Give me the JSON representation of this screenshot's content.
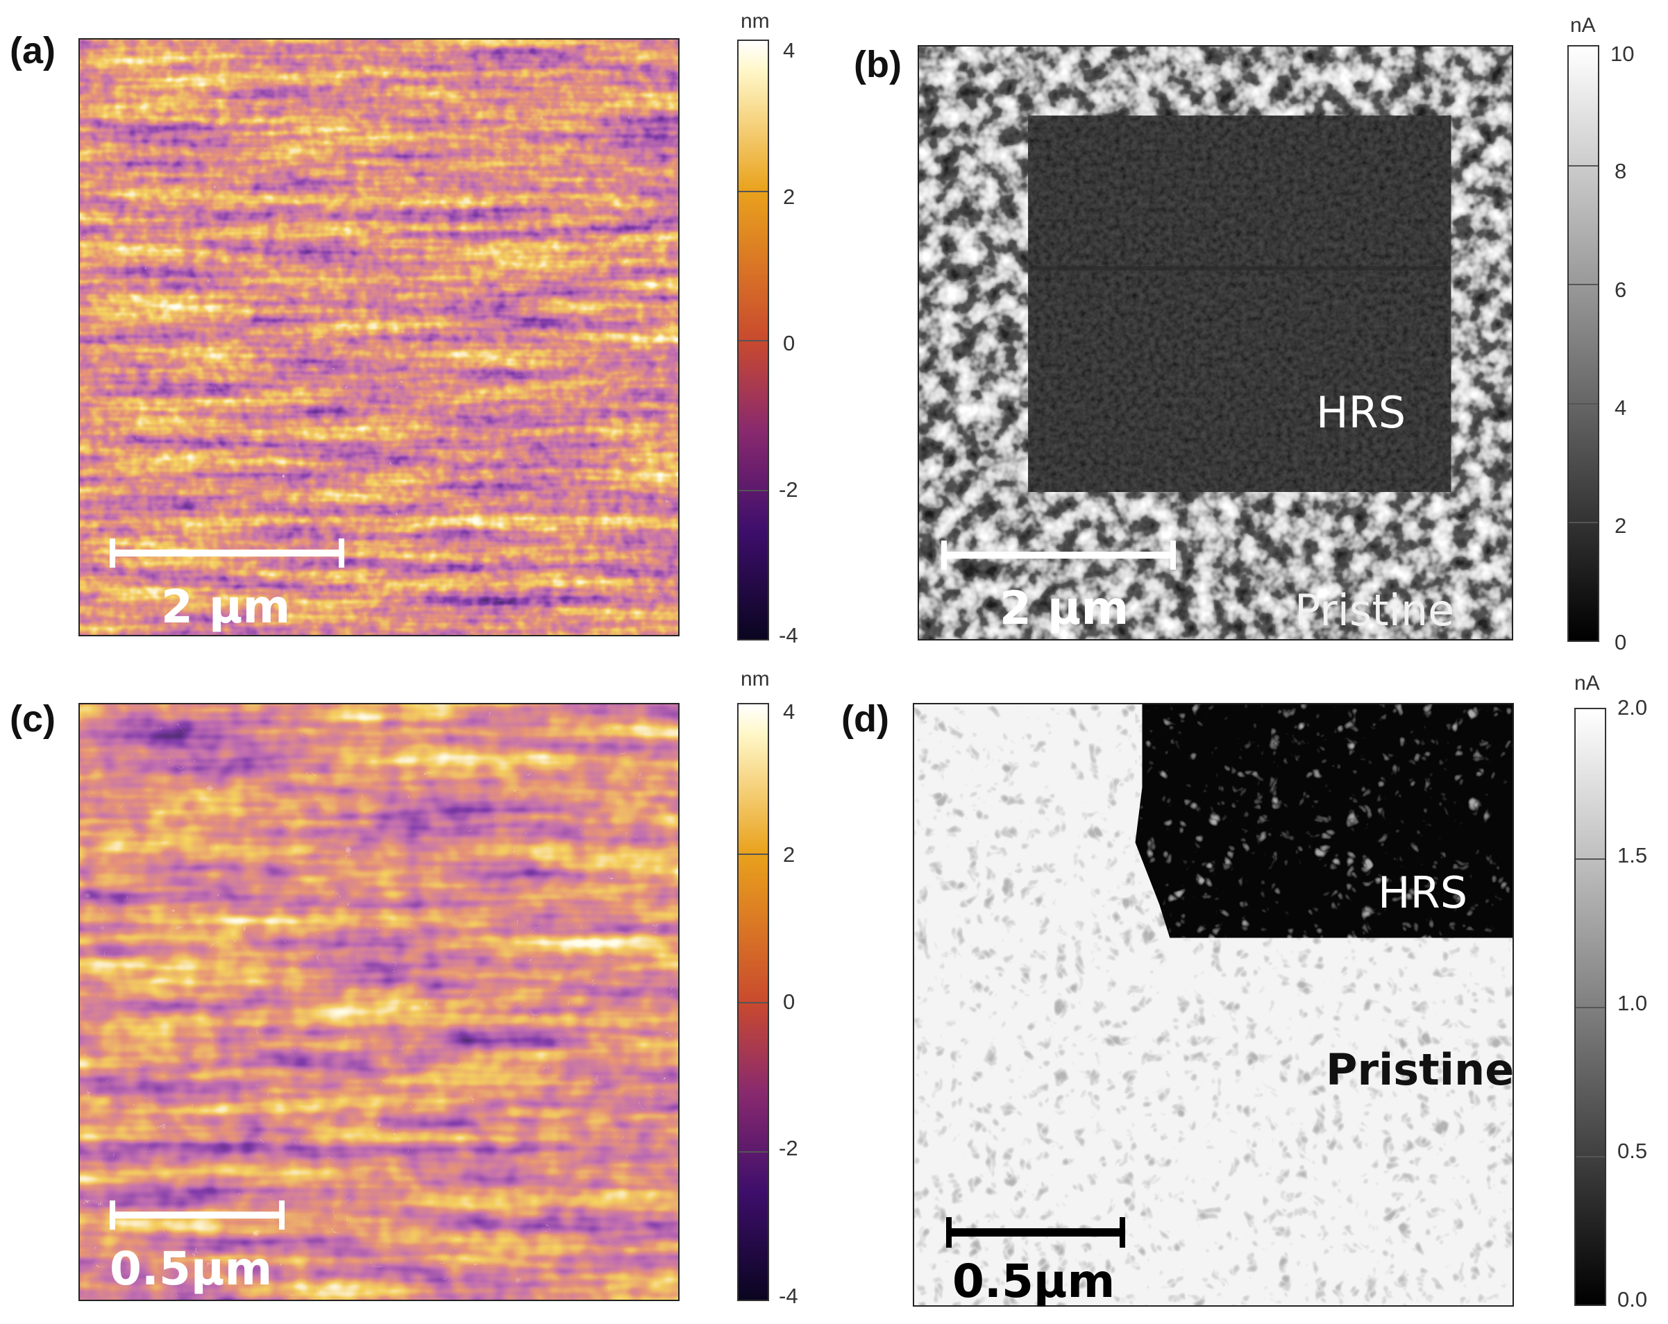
{
  "panels": {
    "a": {
      "label": "(a)",
      "scale_text": "2 μm"
    },
    "b": {
      "label": "(b)",
      "scale_text": "2 μm",
      "hrs_label": "HRS",
      "pristine_label": "Pristine"
    },
    "c": {
      "label": "(c)",
      "scale_text": "0.5μm"
    },
    "d": {
      "label": "(d)",
      "scale_text": "0.5μm",
      "hrs_label": "HRS",
      "pristine_label": "Pristine"
    }
  },
  "colorbars": {
    "a": {
      "unit": "nm",
      "ticks": [
        "4",
        "2",
        "0",
        "-2",
        "-4"
      ],
      "min": -4,
      "max": 4
    },
    "b": {
      "unit": "nA",
      "ticks": [
        "10",
        "8",
        "6",
        "4",
        "2",
        "0"
      ],
      "min": 0,
      "max": 10
    },
    "c": {
      "unit": "nm",
      "ticks": [
        "4",
        "2",
        "0",
        "-2",
        "-4"
      ],
      "min": -4,
      "max": 4
    },
    "d": {
      "unit": "nA",
      "ticks": [
        "2.0",
        "1.5",
        "1.0",
        "0.5",
        "0.0"
      ],
      "min": 0,
      "max": 2
    }
  },
  "colors": {
    "height_map": [
      "#0a0520",
      "#3d0e6b",
      "#8a2a6e",
      "#c94a2e",
      "#e9a21c",
      "#fff7c8",
      "#ffffff"
    ],
    "current_map": [
      "#000000",
      "#ffffff"
    ]
  }
}
